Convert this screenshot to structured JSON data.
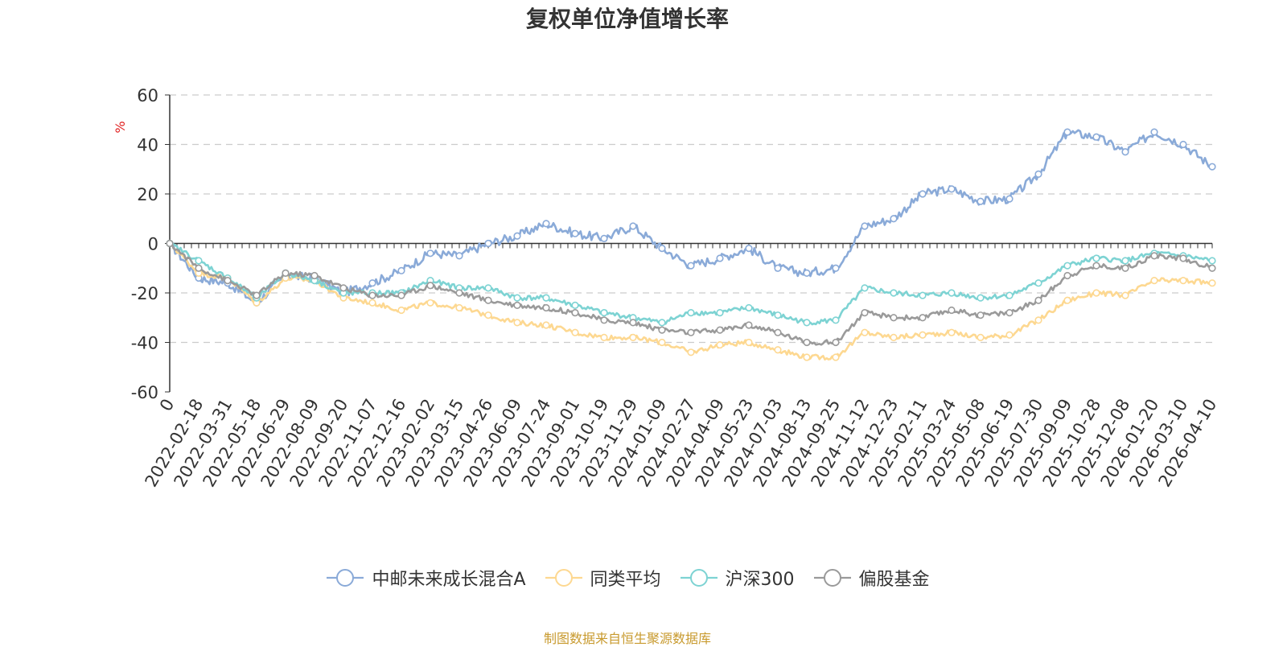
{
  "title": "复权单位净值增长率",
  "source_note": "制图数据来自恒生聚源数据库",
  "colors": {
    "fund": "#8aaad8",
    "peer_avg": "#fdd891",
    "hs300": "#7dd3d3",
    "equity_fund": "#9a9a9a",
    "axis": "#333333",
    "grid": "#cccccc",
    "unit": "#e02020",
    "source": "#c89a2e"
  },
  "legend_icon": "circle-line-marker-icon",
  "chart_data": {
    "type": "line",
    "ylabel": "%",
    "ylim": [
      -60,
      60
    ],
    "yticks": [
      60,
      40,
      20,
      0,
      -20,
      -40,
      -60
    ],
    "grid": true,
    "legend_position": "bottom",
    "x_labels": [
      "0",
      "2022-02-18",
      "2022-03-31",
      "2022-05-18",
      "2022-06-29",
      "2022-08-09",
      "2022-09-20",
      "2022-11-07",
      "2022-12-16",
      "2023-02-02",
      "2023-03-15",
      "2023-04-26",
      "2023-06-09",
      "2023-07-24",
      "2023-09-01",
      "2023-10-19",
      "2023-11-29",
      "2024-01-09",
      "2024-02-27",
      "2024-04-09",
      "2024-05-23",
      "2024-07-03",
      "2024-08-13",
      "2024-09-25",
      "2024-11-12",
      "2024-12-23",
      "2025-02-11",
      "2025-03-24",
      "2025-05-08",
      "2025-06-19",
      "2025-07-30",
      "2025-09-09",
      "2025-10-28",
      "2025-12-08",
      "2026-01-20",
      "2026-03-10",
      "2026-04-10"
    ],
    "series": [
      {
        "name": "中邮未来成长混合A",
        "color_key": "fund",
        "values": [
          0,
          -14,
          -16,
          -24,
          -13,
          -14,
          -20,
          -16,
          -11,
          -4,
          -5,
          0,
          3,
          8,
          4,
          2,
          7,
          -2,
          -9,
          -6,
          -2,
          -10,
          -12,
          -10,
          7,
          10,
          20,
          22,
          17,
          18,
          28,
          45,
          43,
          37,
          45,
          40,
          31
        ]
      },
      {
        "name": "同类平均",
        "color_key": "peer_avg",
        "values": [
          0,
          -12,
          -14,
          -24,
          -14,
          -15,
          -22,
          -24,
          -27,
          -24,
          -26,
          -29,
          -32,
          -33,
          -36,
          -38,
          -38,
          -40,
          -44,
          -41,
          -40,
          -43,
          -46,
          -46,
          -36,
          -38,
          -37,
          -36,
          -38,
          -37,
          -31,
          -23,
          -20,
          -21,
          -15,
          -15,
          -16
        ]
      },
      {
        "name": "沪深300",
        "color_key": "hs300",
        "values": [
          0,
          -7,
          -14,
          -22,
          -12,
          -15,
          -20,
          -20,
          -20,
          -15,
          -18,
          -18,
          -22,
          -22,
          -25,
          -28,
          -30,
          -32,
          -28,
          -28,
          -26,
          -29,
          -32,
          -31,
          -18,
          -20,
          -21,
          -20,
          -22,
          -21,
          -16,
          -9,
          -6,
          -7,
          -4,
          -5,
          -7
        ]
      },
      {
        "name": "偏股基金",
        "color_key": "equity_fund",
        "values": [
          0,
          -10,
          -15,
          -21,
          -12,
          -13,
          -18,
          -21,
          -21,
          -17,
          -20,
          -23,
          -25,
          -26,
          -28,
          -31,
          -32,
          -35,
          -36,
          -35,
          -33,
          -36,
          -40,
          -40,
          -28,
          -30,
          -30,
          -27,
          -29,
          -28,
          -23,
          -13,
          -9,
          -10,
          -5,
          -6,
          -10
        ]
      }
    ]
  }
}
